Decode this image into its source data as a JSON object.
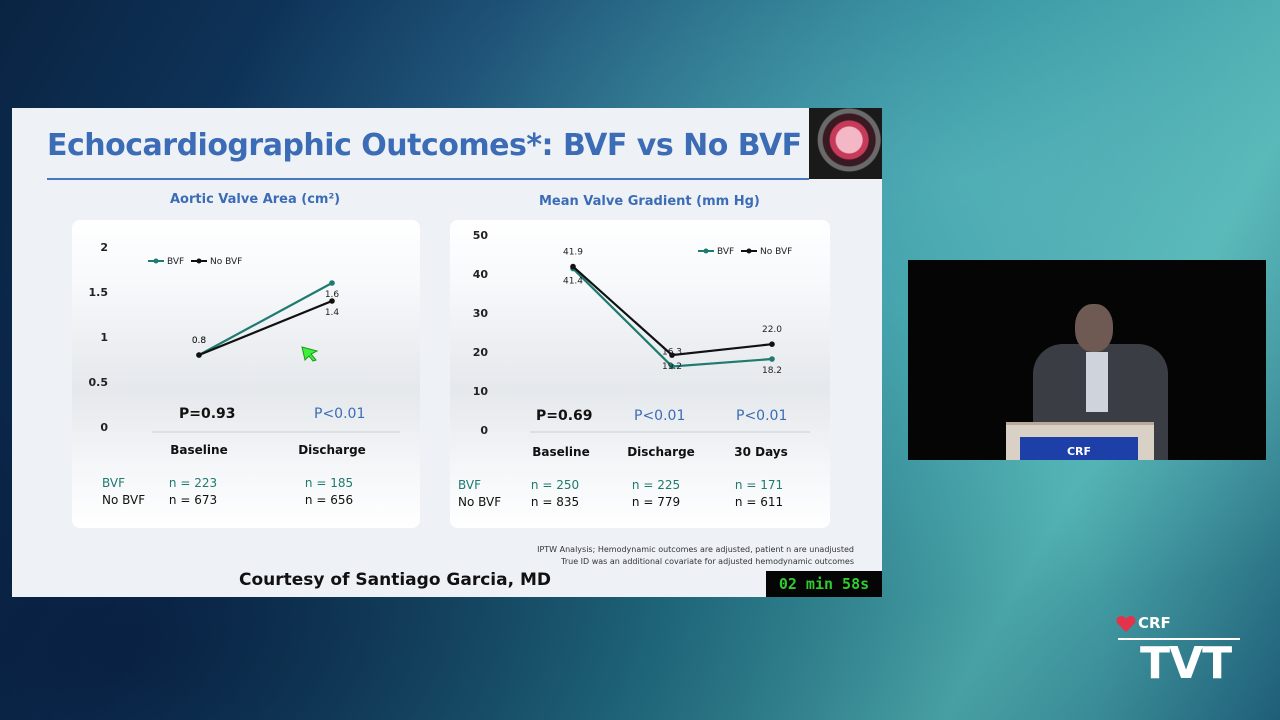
{
  "slide": {
    "title": "Echocardiographic Outcomes*: BVF vs No BVF",
    "courtesy": "Courtesy of Santiago Garcia, MD",
    "timer": "02 min 58s",
    "footnote_line1": "IPTW Analysis; Hemodynamic outcomes are adjusted, patient n are unadjusted",
    "footnote_line2": "True ID was an additional covariate for adjusted hemodynamic outcomes"
  },
  "podium_logo": "CRF",
  "brand": {
    "top": "CRF",
    "bottom": "TVT"
  },
  "colors": {
    "bvf": "#1f7a70",
    "no_bvf": "#111111",
    "title": "#3b6cb5",
    "timer": "#2fcc2f"
  },
  "icons": {
    "cursor": "cursor-arrow-icon",
    "brand": "heart-icon"
  },
  "chart_data": [
    {
      "type": "line",
      "title": "Aortic Valve Area (cm²)",
      "categories": [
        "Baseline",
        "Discharge"
      ],
      "ylim": [
        0,
        2
      ],
      "yticks": [
        "2",
        "1.5",
        "1",
        "0.5",
        "0"
      ],
      "legend": "top-left",
      "series": [
        {
          "name": "BVF",
          "color": "#1f7a70",
          "values": [
            0.8,
            1.6
          ],
          "labels": [
            "0.8",
            "1.6"
          ]
        },
        {
          "name": "No BVF",
          "color": "#111111",
          "values": [
            0.8,
            1.4
          ],
          "labels": [
            "0.8",
            "1.4"
          ]
        }
      ],
      "p_values": [
        "P=0.93",
        "P<0.01"
      ],
      "n_rows": [
        {
          "label": "BVF",
          "values": [
            "n = 223",
            "n = 185"
          ]
        },
        {
          "label": "No BVF",
          "values": [
            "n = 673",
            "n = 656"
          ]
        }
      ]
    },
    {
      "type": "line",
      "title": "Mean Valve Gradient (mm Hg)",
      "categories": [
        "Baseline",
        "Discharge",
        "30 Days"
      ],
      "ylim": [
        0,
        50
      ],
      "yticks": [
        "50",
        "40",
        "30",
        "20",
        "10",
        "0"
      ],
      "legend": "top-right",
      "series": [
        {
          "name": "BVF",
          "color": "#1f7a70",
          "values": [
            41.4,
            16.3,
            18.2
          ],
          "labels": [
            "41.4",
            "16.3",
            "18.2"
          ]
        },
        {
          "name": "No BVF",
          "color": "#111111",
          "values": [
            41.9,
            19.2,
            22.0
          ],
          "labels": [
            "41.9",
            "19.2",
            "22.0"
          ]
        }
      ],
      "p_values": [
        "P=0.69",
        "P<0.01",
        "P<0.01"
      ],
      "n_rows": [
        {
          "label": "BVF",
          "values": [
            "n = 250",
            "n = 225",
            "n = 171"
          ]
        },
        {
          "label": "No BVF",
          "values": [
            "n = 835",
            "n = 779",
            "n = 611"
          ]
        }
      ]
    }
  ]
}
